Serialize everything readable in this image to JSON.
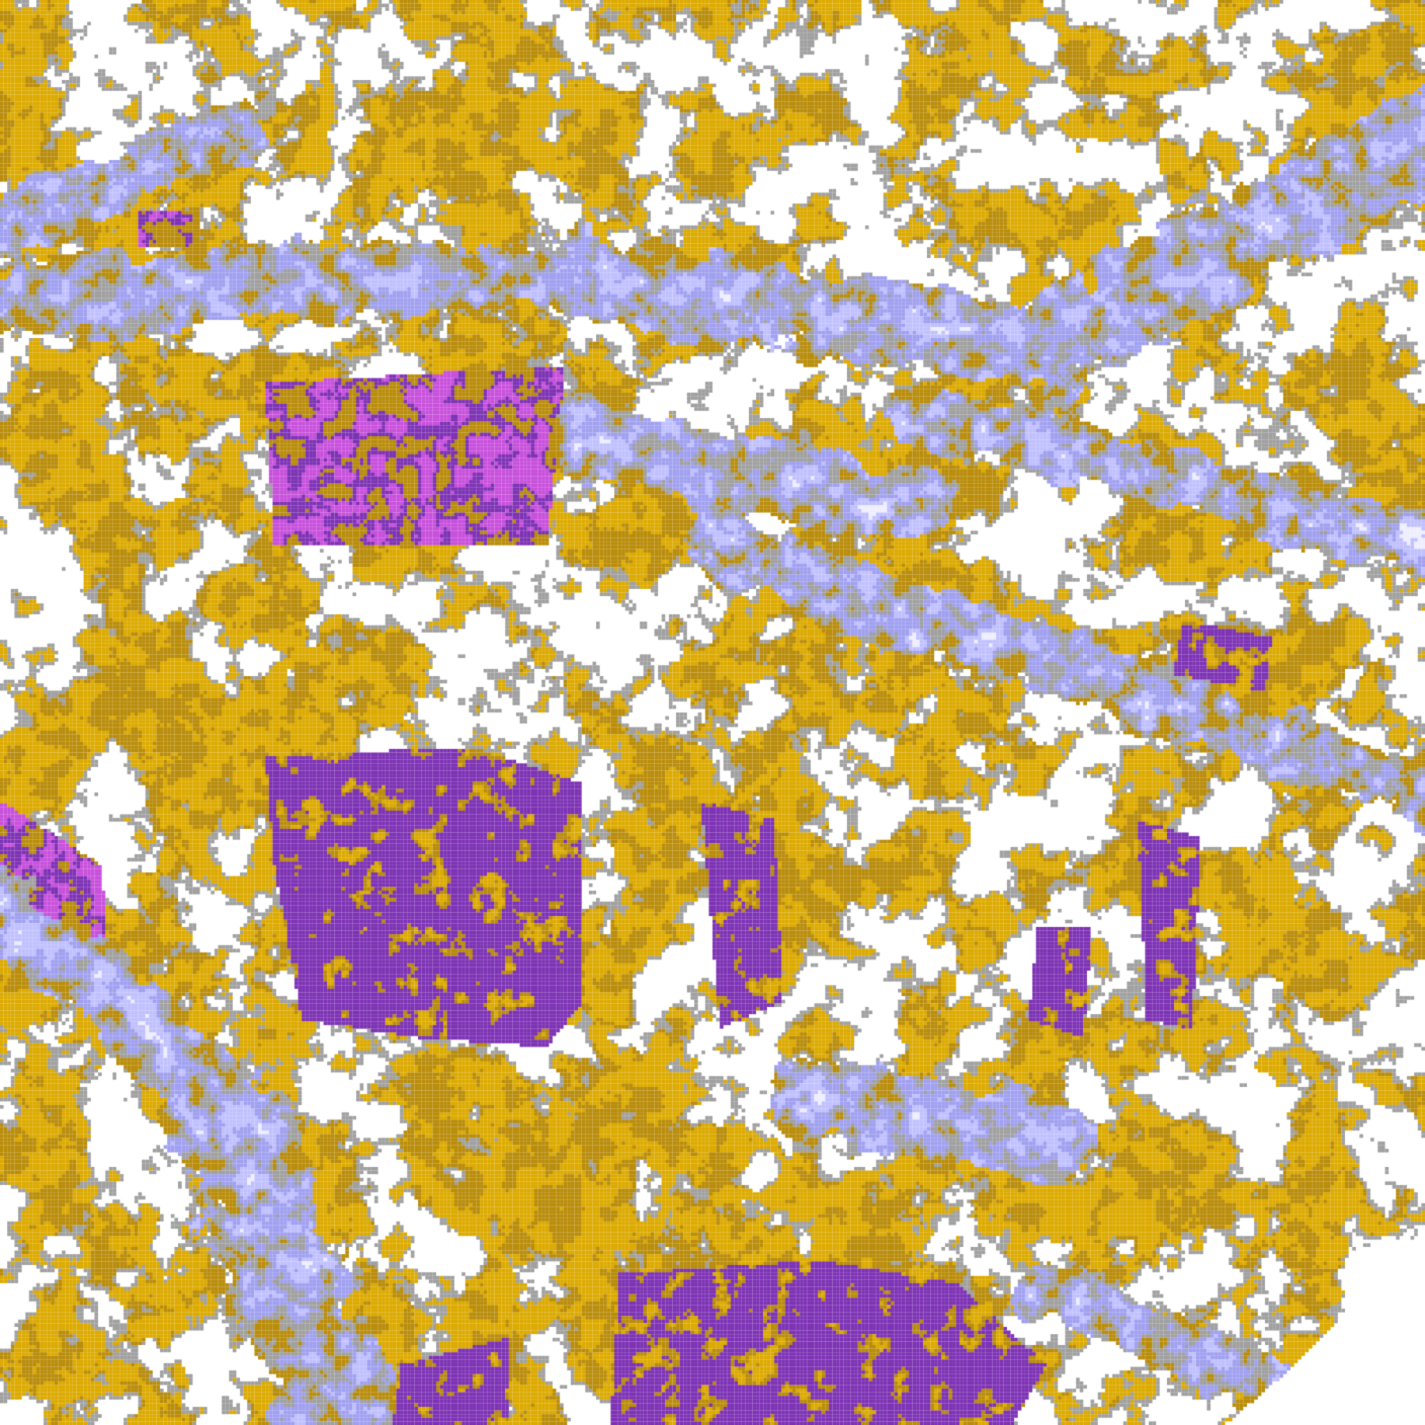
{
  "image": {
    "kind": "satellite cloud classification map",
    "palette": {
      "clear": "#ffffff",
      "gold_dark": "#b98c0a",
      "gold_light": "#dcaa00",
      "gray": "#a0a0a0",
      "lavender": "#c0c0ff",
      "lavender_mid": "#a0a0f0",
      "pale": "#eeeeff",
      "purple": "#7d32b4",
      "magenta": "#c850dc"
    }
  }
}
